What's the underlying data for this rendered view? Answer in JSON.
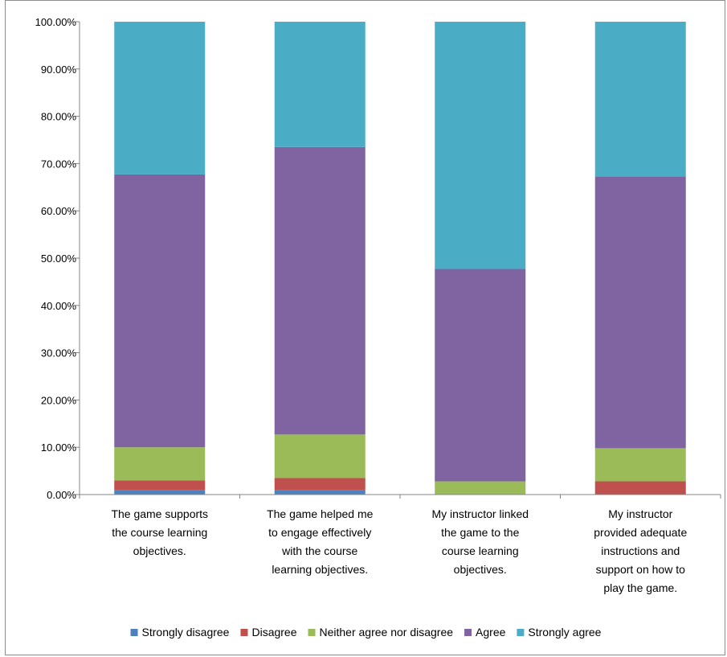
{
  "chart_data": {
    "type": "bar",
    "stacked": true,
    "percent_scale": true,
    "categories": [
      [
        "The game supports",
        "the course learning",
        "objectives."
      ],
      [
        "The game helped me",
        "to engage effectively",
        "with the course",
        "learning objectives."
      ],
      [
        "My instructor linked",
        "the game to the",
        "course learning",
        "objectives."
      ],
      [
        "My instructor",
        "provided adequate",
        "instructions and",
        "support on how to",
        "play the game."
      ]
    ],
    "series": [
      {
        "name": "Strongly disagree",
        "color": "#4f81bd",
        "values": [
          1.0,
          1.0,
          0.0,
          0.0
        ]
      },
      {
        "name": "Disagree",
        "color": "#c0504d",
        "values": [
          2.0,
          2.5,
          0.0,
          2.8
        ]
      },
      {
        "name": "Neither agree nor disagree",
        "color": "#9bbb59",
        "values": [
          7.0,
          9.2,
          2.8,
          7.0
        ]
      },
      {
        "name": "Agree",
        "color": "#8064a2",
        "values": [
          57.7,
          60.8,
          44.9,
          57.5
        ]
      },
      {
        "name": "Strongly agree",
        "color": "#4bacc6",
        "values": [
          32.3,
          26.5,
          52.3,
          32.7
        ]
      }
    ],
    "y_ticks": [
      "0.00%",
      "10.00%",
      "20.00%",
      "30.00%",
      "40.00%",
      "50.00%",
      "60.00%",
      "70.00%",
      "80.00%",
      "90.00%",
      "100.00%"
    ],
    "ylim": [
      0,
      100
    ],
    "grid": false,
    "legend_position": "bottom",
    "title": "",
    "xlabel": "",
    "ylabel": ""
  }
}
